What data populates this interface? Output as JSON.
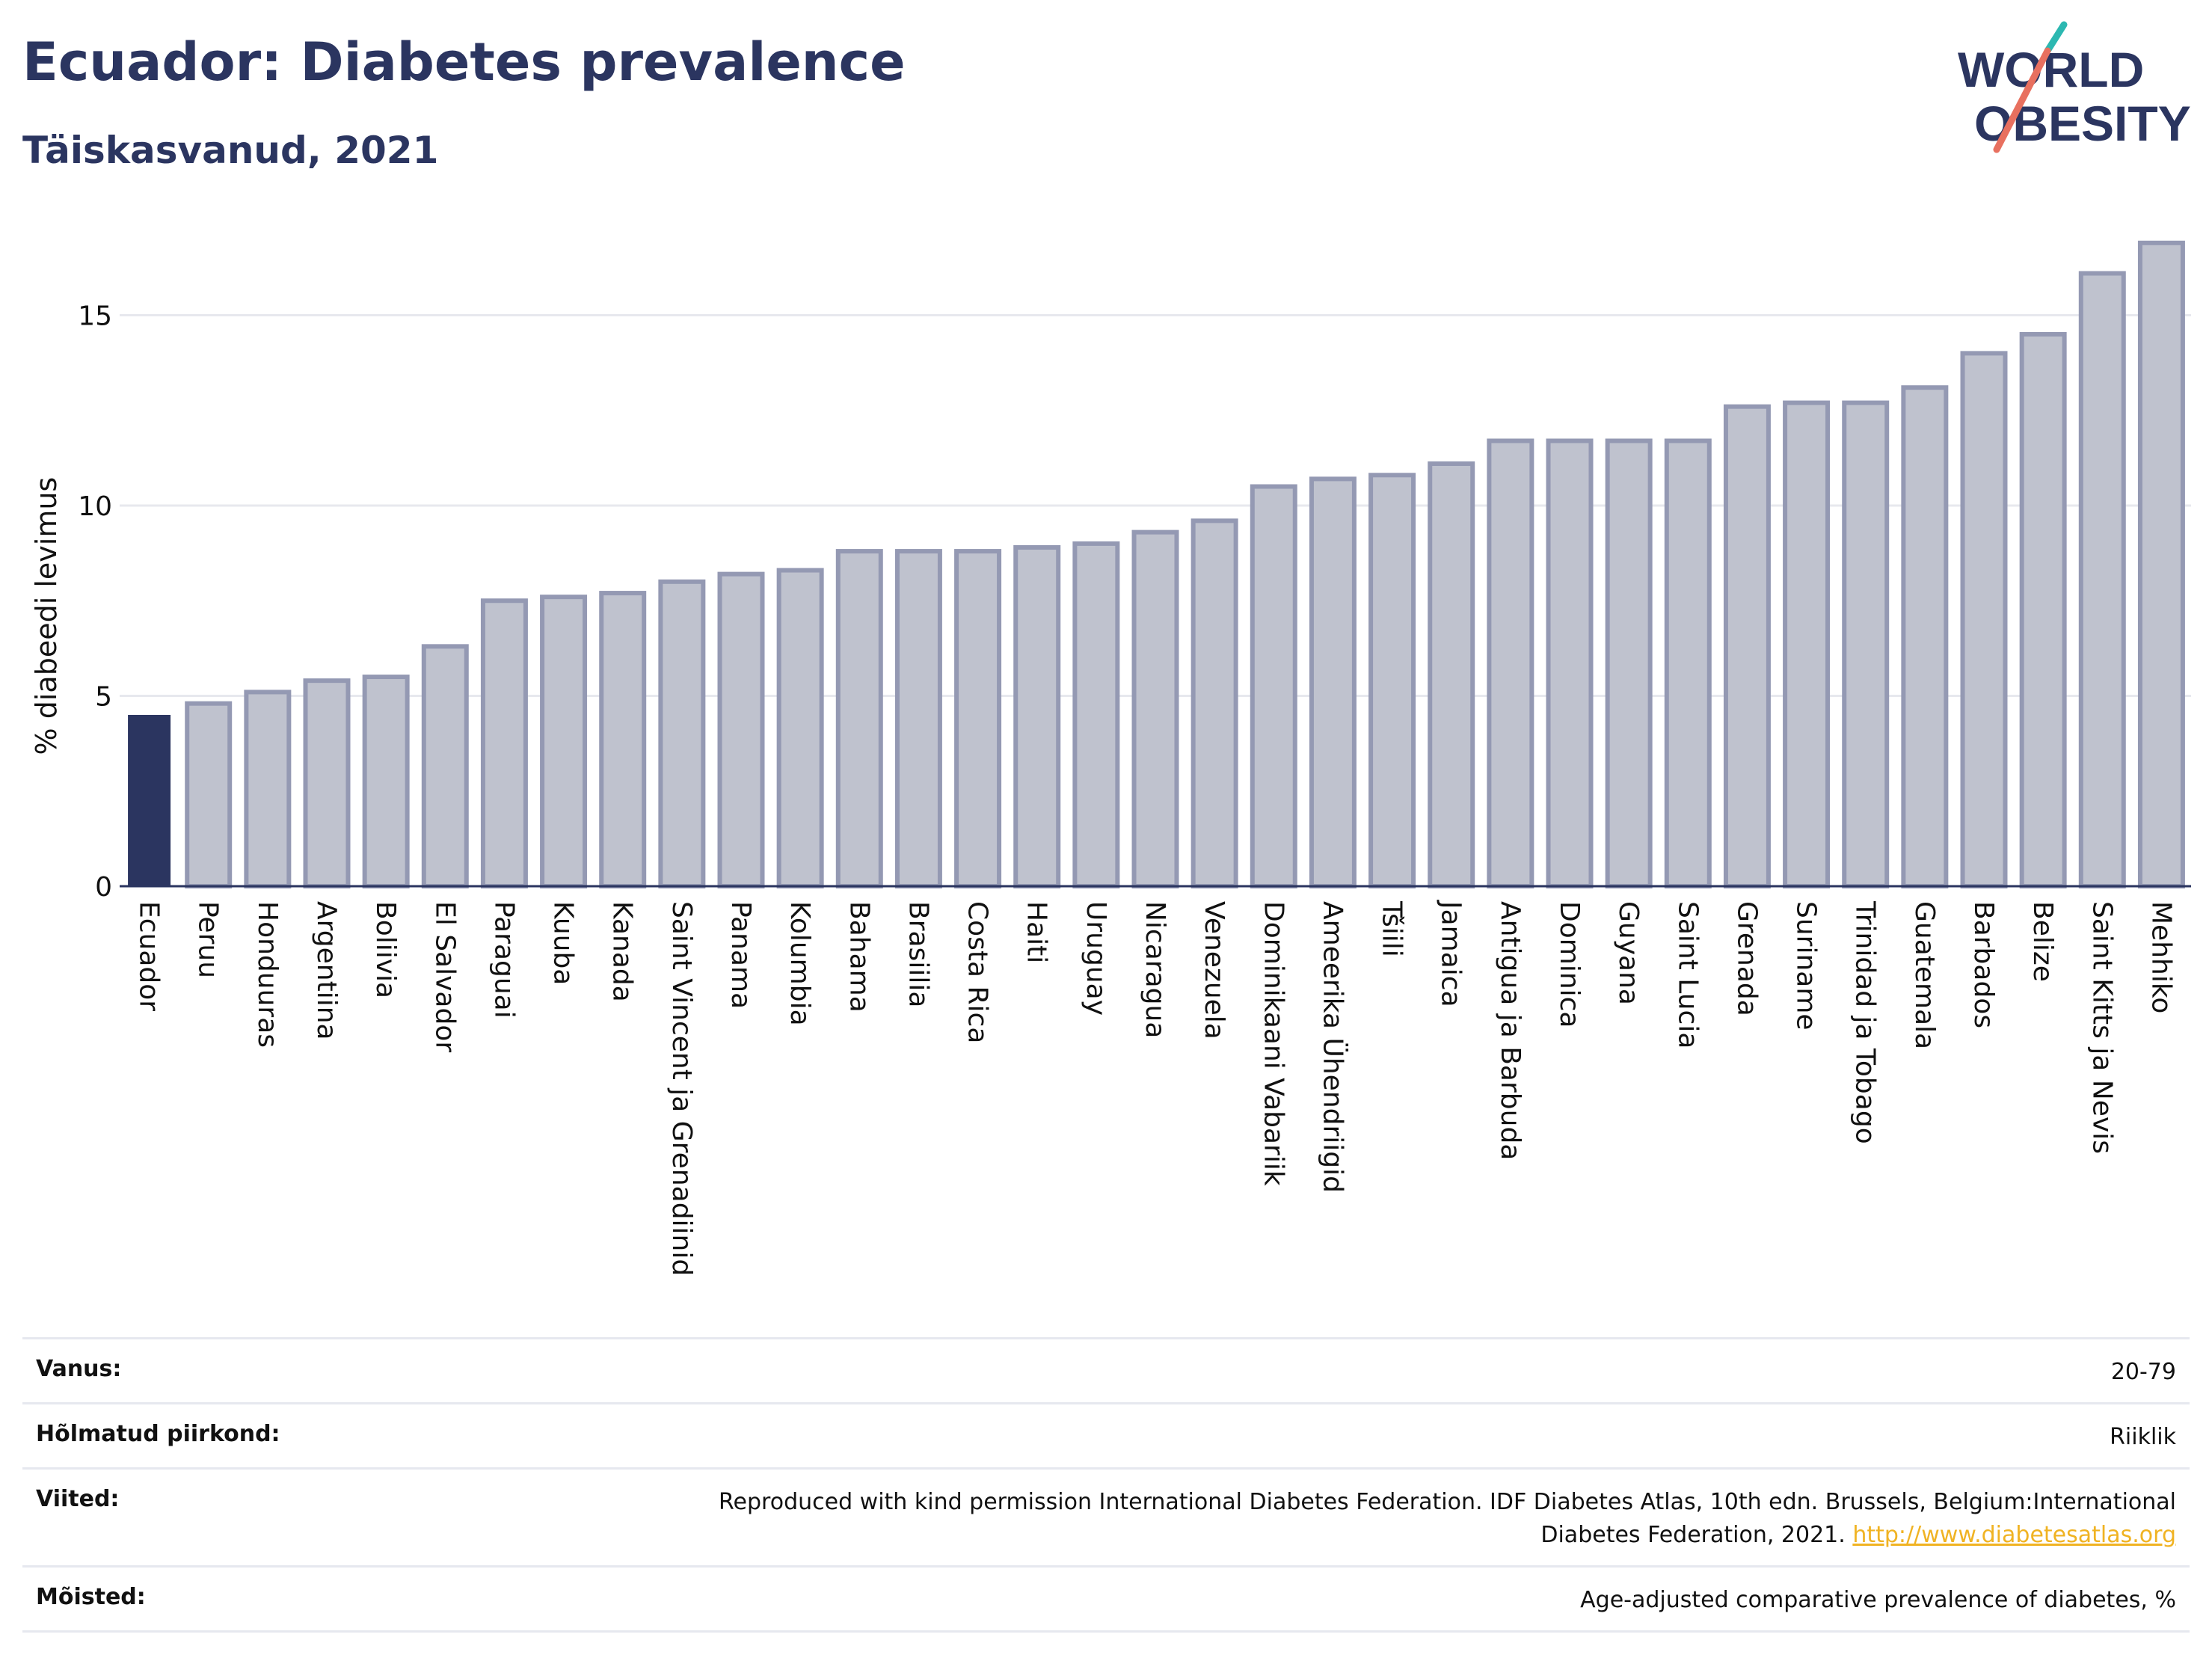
{
  "header": {
    "title": "Ecuador: Diabetes prevalence",
    "subtitle": "Täiskasvanud, 2021"
  },
  "logo": {
    "line1": "WORLD",
    "line2": "OBESITY"
  },
  "colors": {
    "highlight": "#2b3560",
    "bar_fill": "#bfc2ce",
    "bar_stroke": "#9499b3",
    "grid": "#e7e8ee",
    "logo_teal": "#2cb8b1",
    "logo_coral": "#e8705f"
  },
  "chart_data": {
    "type": "bar",
    "title": "Ecuador: Diabetes prevalence",
    "subtitle": "Täiskasvanud, 2021",
    "xlabel": "",
    "ylabel": "% diabeedi levimus",
    "ylim": [
      0,
      17
    ],
    "yticks": [
      0,
      5,
      10,
      15
    ],
    "grid": true,
    "highlight": "Ecuador",
    "categories": [
      "Ecuador",
      "Peruu",
      "Honduuras",
      "Argentiina",
      "Boliivia",
      "El Salvador",
      "Paraguai",
      "Kuuba",
      "Kanada",
      "Saint Vincent ja Grenadiinid",
      "Panama",
      "Kolumbia",
      "Bahama",
      "Brasiilia",
      "Costa Rica",
      "Haiti",
      "Uruguay",
      "Nicaragua",
      "Venezuela",
      "Dominikaani Vabariik",
      "Ameerika Ühendriigid",
      "Tšiili",
      "Jamaica",
      "Antigua ja Barbuda",
      "Dominica",
      "Guyana",
      "Saint Lucia",
      "Grenada",
      "Suriname",
      "Trinidad ja Tobago",
      "Guatemala",
      "Barbados",
      "Belize",
      "Saint Kitts ja Nevis",
      "Mehhiko"
    ],
    "values": [
      4.5,
      4.8,
      5.1,
      5.4,
      5.5,
      6.3,
      7.5,
      7.6,
      7.7,
      8.0,
      8.2,
      8.3,
      8.8,
      8.8,
      8.8,
      8.9,
      9.0,
      9.3,
      9.6,
      10.5,
      10.7,
      10.8,
      11.1,
      11.7,
      11.7,
      11.7,
      11.7,
      12.6,
      12.7,
      12.7,
      13.1,
      14.0,
      14.5,
      16.1,
      16.9
    ]
  },
  "meta": {
    "rows": [
      {
        "label": "Vanus:",
        "value": "20-79"
      },
      {
        "label": "Hõlmatud piirkond:",
        "value": "Riiklik"
      },
      {
        "label": "Viited:",
        "value": "Reproduced with kind permission International Diabetes Federation.  IDF Diabetes Atlas, 10th edn. Brussels, Belgium:International Diabetes Federation, 2021.",
        "link": "http://www.diabetesatlas.org"
      },
      {
        "label": "Mõisted:",
        "value": "Age-adjusted comparative prevalence of diabetes, %"
      }
    ]
  }
}
